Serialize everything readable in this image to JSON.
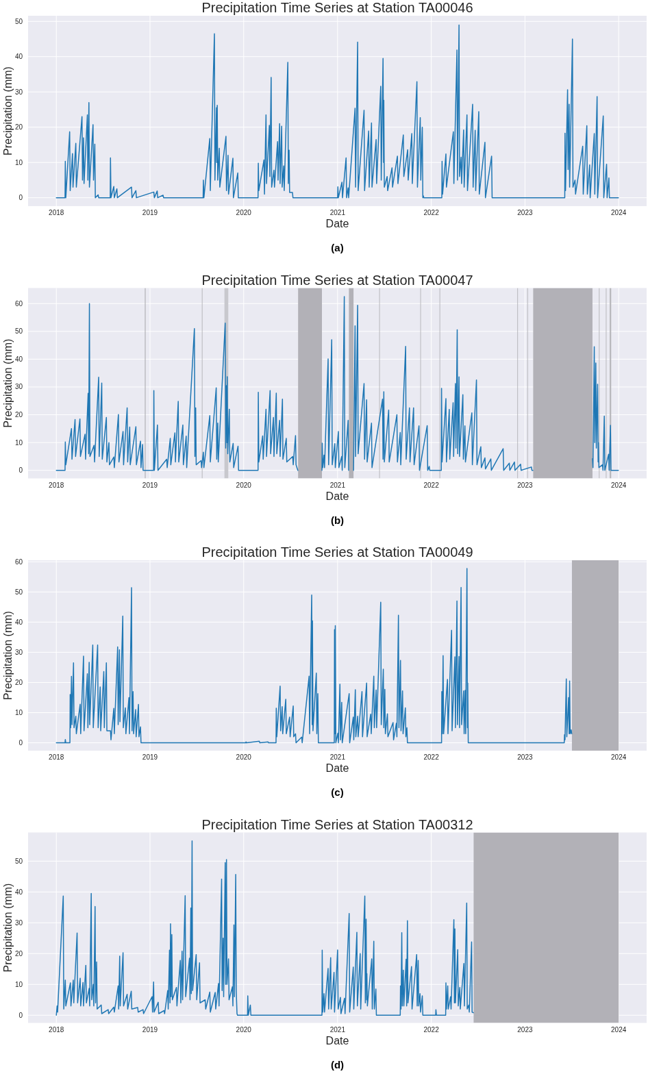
{
  "chart_data": [
    {
      "type": "line",
      "title": "Precipitation Time Series at Station TA00046",
      "xlabel": "Date",
      "ylabel": "Precipitation (mm)",
      "annotations": [
        "(a)"
      ],
      "grid": true,
      "xlim": [
        "2017-09-13",
        "2024-04-19"
      ],
      "xticks": [
        "2018",
        "2019",
        "2020",
        "2021",
        "2022",
        "2023",
        "2024"
      ],
      "ylim": [
        -2.4,
        51.6
      ],
      "yticks": [
        0,
        10,
        20,
        30,
        40,
        50
      ],
      "x": [
        "2018-01-01",
        "2018-02-04",
        "2018-02-05",
        "2018-02-07",
        "2018-02-22",
        "2018-02-24",
        "2018-03-05",
        "2018-03-07",
        "2018-03-18",
        "2018-03-20",
        "2018-04-11",
        "2018-04-13",
        "2018-04-17",
        "2018-04-19",
        "2018-05-02",
        "2018-05-04",
        "2018-05-08",
        "2018-05-10",
        "2018-05-24",
        "2018-05-26",
        "2018-05-31",
        "2018-06-02",
        "2018-06-13",
        "2018-06-15",
        "2018-07-30",
        "2018-07-31",
        "2018-08-02",
        "2018-08-13",
        "2018-08-15",
        "2018-08-25",
        "2018-08-27",
        "2018-10-21",
        "2018-10-23",
        "2018-11-07",
        "2018-11-09",
        "2019-01-16",
        "2019-01-18",
        "2019-01-29",
        "2019-01-31",
        "2019-02-21",
        "2019-02-23",
        "2019-07-27",
        "2019-07-28",
        "2019-07-30",
        "2019-08-22",
        "2019-08-24",
        "2019-09-09",
        "2019-09-11",
        "2019-09-17",
        "2019-09-18",
        "2019-09-20",
        "2019-09-22",
        "2019-09-28",
        "2019-09-30",
        "2019-10-24",
        "2019-10-26",
        "2019-11-01",
        "2019-11-03",
        "2019-11-20",
        "2019-11-22",
        "2019-12-09",
        "2019-12-11",
        "2020-02-26",
        "2020-02-27",
        "2020-02-29",
        "2020-03-20",
        "2020-03-22",
        "2020-03-28",
        "2020-03-30",
        "2020-04-10",
        "2020-04-12",
        "2020-04-17",
        "2020-04-19",
        "2020-04-28",
        "2020-04-30",
        "2020-05-12",
        "2020-05-14",
        "2020-05-20",
        "2020-05-22",
        "2020-05-28",
        "2020-05-30",
        "2020-06-05",
        "2020-06-07",
        "2020-06-21",
        "2020-06-23",
        "2020-06-26",
        "2020-06-28",
        "2020-07-09",
        "2020-07-11",
        "2021-01-01",
        "2021-01-02",
        "2021-01-04",
        "2021-01-18",
        "2021-01-20",
        "2021-02-03",
        "2021-02-05",
        "2021-02-11",
        "2021-02-13",
        "2021-03-10",
        "2021-03-12",
        "2021-03-20",
        "2021-03-22",
        "2021-04-14",
        "2021-04-16",
        "2021-05-02",
        "2021-05-04",
        "2021-05-13",
        "2021-05-15",
        "2021-05-31",
        "2021-06-02",
        "2021-06-18",
        "2021-06-20",
        "2021-06-27",
        "2021-06-29",
        "2021-06-30",
        "2021-07-02",
        "2021-07-13",
        "2021-07-15",
        "2021-08-01",
        "2021-08-03",
        "2021-08-22",
        "2021-08-24",
        "2021-09-14",
        "2021-09-16",
        "2021-10-01",
        "2021-10-03",
        "2021-10-17",
        "2021-10-19",
        "2021-11-06",
        "2021-11-08",
        "2021-11-19",
        "2021-11-21",
        "2021-11-27",
        "2021-11-29",
        "2021-12-01",
        "2021-12-03",
        "2022-02-11",
        "2022-02-12",
        "2022-02-14",
        "2022-02-27",
        "2022-03-01",
        "2022-03-28",
        "2022-03-30",
        "2022-04-11",
        "2022-04-13",
        "2022-04-19",
        "2022-04-21",
        "2022-04-27",
        "2022-04-29",
        "2022-05-07",
        "2022-05-09",
        "2022-05-20",
        "2022-05-22",
        "2022-06-11",
        "2022-06-13",
        "2022-06-21",
        "2022-06-23",
        "2022-07-05",
        "2022-07-07",
        "2022-07-29",
        "2022-07-31",
        "2022-08-24",
        "2022-08-26",
        "2023-06-05",
        "2023-06-06",
        "2023-06-08",
        "2023-06-16",
        "2023-06-18",
        "2023-06-22",
        "2023-06-24",
        "2023-07-05",
        "2023-07-07",
        "2023-07-15",
        "2023-07-17",
        "2023-08-14",
        "2023-08-16",
        "2023-08-30",
        "2023-09-01",
        "2023-09-10",
        "2023-09-12",
        "2023-09-28",
        "2023-09-30",
        "2023-10-09",
        "2023-10-11",
        "2023-11-02",
        "2023-11-04",
        "2023-11-15",
        "2023-11-17",
        "2023-11-24",
        "2023-11-26",
        "2023-12-31"
      ],
      "series": [
        {
          "color": "#1f77b4",
          "values": [
            0,
            0,
            10.3,
            0,
            18.7,
            2,
            12.5,
            3,
            15.4,
            3,
            23,
            5,
            17,
            4,
            23.5,
            5,
            27,
            3,
            20.7,
            5,
            15.2,
            0,
            0.8,
            0,
            0,
            11.3,
            0,
            3.2,
            0,
            2.5,
            0,
            3,
            0,
            2,
            0,
            1.6,
            0,
            1.9,
            0,
            0.7,
            0,
            0,
            5,
            0,
            16.8,
            2,
            46.5,
            5,
            25.5,
            10,
            26.2,
            5,
            14,
            3,
            17.4,
            2,
            12,
            1,
            11.2,
            0,
            7,
            0,
            0,
            9.8,
            2,
            10.7,
            1,
            23.5,
            4,
            20.5,
            6,
            34.1,
            3,
            7.8,
            3,
            15.9,
            5,
            21,
            4,
            20.3,
            3,
            9,
            2,
            38.4,
            4,
            13.5,
            1.5,
            1.5,
            0,
            0,
            3.1,
            0,
            4.4,
            0,
            11.3,
            0,
            2.8,
            0,
            25.4,
            3,
            44.1,
            2,
            24.8,
            2,
            18.9,
            3,
            21.2,
            3,
            16.5,
            4,
            31.6,
            5,
            39.5,
            10,
            27.6,
            3,
            6,
            2,
            8.5,
            3,
            11.8,
            4,
            17.8,
            6,
            13.6,
            5,
            18.2,
            4,
            32.9,
            3,
            22.7,
            5,
            20,
            0,
            0.5,
            0,
            0,
            10.3,
            1,
            12.4,
            3,
            18.7,
            4,
            41.9,
            5,
            49,
            6,
            11.5,
            4,
            19.2,
            3,
            23.5,
            2,
            26.5,
            3,
            19.1,
            2,
            24.4,
            1,
            15.7,
            0,
            11.8,
            0,
            0,
            18.3,
            2,
            30.6,
            8,
            26.5,
            3,
            45,
            3,
            5,
            1,
            14.6,
            1,
            20.4,
            1,
            9.3,
            0,
            18.2,
            1,
            28.7,
            0,
            23.2,
            0,
            9.5,
            0,
            5.6,
            0,
            0
          ]
        }
      ]
    },
    {
      "type": "line",
      "title": "Precipitation Time Series at Station TA00047",
      "xlabel": "Date",
      "ylabel": "Precipitation (mm)",
      "annotations": [
        "(b)"
      ],
      "grid": true,
      "xlim": [
        "2017-09-13",
        "2024-04-19"
      ],
      "xticks": [
        "2018",
        "2019",
        "2020",
        "2021",
        "2022",
        "2023",
        "2024"
      ],
      "ylim": [
        -2.9,
        65.6
      ],
      "yticks": [
        0,
        10,
        20,
        30,
        40,
        50,
        60
      ],
      "bands": [
        {
          "axis": "x",
          "from": "2020-07-31",
          "to": "2020-11-01",
          "color": "#b2b1b7"
        },
        {
          "axis": "x",
          "from": "2021-02-14",
          "to": "2021-03-04",
          "color": "#b2b1b7"
        },
        {
          "axis": "x",
          "from": "2023-02-02",
          "to": "2023-09-21",
          "color": "#b2b1b7"
        },
        {
          "axis": "x",
          "from": "2018-12-12",
          "to": "2018-12-14",
          "color": "#a4a4a8"
        },
        {
          "axis": "x",
          "from": "2019-07-22",
          "to": "2019-07-23",
          "color": "#b8b8bc"
        },
        {
          "axis": "x",
          "from": "2019-10-18",
          "to": "2019-11-02",
          "color": "#c8c8cd"
        },
        {
          "axis": "x",
          "from": "2021-06-12",
          "to": "2021-06-13",
          "color": "#b8b8bc"
        },
        {
          "axis": "x",
          "from": "2021-11-19",
          "to": "2021-11-20",
          "color": "#b8b8bc"
        },
        {
          "axis": "x",
          "from": "2022-02-02",
          "to": "2022-02-03",
          "color": "#b8b8bc"
        },
        {
          "axis": "x",
          "from": "2022-12-02",
          "to": "2022-12-03",
          "color": "#b8b8bc"
        },
        {
          "axis": "x",
          "from": "2023-01-10",
          "to": "2023-01-11",
          "color": "#b8b8bc"
        },
        {
          "axis": "x",
          "from": "2023-10-16",
          "to": "2023-10-18",
          "color": "#b8b8bc"
        },
        {
          "axis": "x",
          "from": "2023-11-12",
          "to": "2023-11-13",
          "color": "#b8b8bc"
        },
        {
          "axis": "x",
          "from": "2023-11-27",
          "to": "2023-12-03",
          "color": "#b8b8bc"
        }
      ],
      "x": [
        "2018-01-01",
        "2018-02-04",
        "2018-02-05",
        "2018-02-07",
        "2018-03-01",
        "2018-03-03",
        "2018-03-15",
        "2018-03-17",
        "2018-04-03",
        "2018-04-05",
        "2018-04-23",
        "2018-04-25",
        "2018-05-05",
        "2018-05-07",
        "2018-05-10",
        "2018-05-12",
        "2018-05-28",
        "2018-05-30",
        "2018-06-15",
        "2018-06-17",
        "2018-06-27",
        "2018-06-29",
        "2018-07-15",
        "2018-07-17",
        "2018-07-25",
        "2018-07-27",
        "2018-08-13",
        "2018-08-15",
        "2018-08-31",
        "2018-09-02",
        "2018-09-18",
        "2018-09-20",
        "2018-10-04",
        "2018-10-06",
        "2018-10-14",
        "2018-10-16",
        "2018-11-07",
        "2018-11-09",
        "2018-11-25",
        "2018-11-27",
        "2018-12-03",
        "2018-12-05",
        "2019-01-15",
        "2019-01-16",
        "2019-01-18",
        "2019-01-30",
        "2019-02-01",
        "2019-03-07",
        "2019-03-09",
        "2019-03-21",
        "2019-03-23",
        "2019-04-08",
        "2019-04-10",
        "2019-04-21",
        "2019-04-23",
        "2019-05-09",
        "2019-05-11",
        "2019-05-22",
        "2019-05-24",
        "2019-06-23",
        "2019-06-25",
        "2019-06-28",
        "2019-06-30",
        "2019-07-19",
        "2019-07-21",
        "2019-07-28",
        "2019-07-30",
        "2019-08-22",
        "2019-08-24",
        "2019-09-16",
        "2019-09-18",
        "2019-09-22",
        "2019-09-24",
        "2019-10-21",
        "2019-10-23",
        "2019-10-26",
        "2019-10-28",
        "2019-10-29",
        "2019-10-31",
        "2019-11-06",
        "2019-11-08",
        "2019-11-21",
        "2019-11-23",
        "2019-12-10",
        "2019-12-12",
        "2020-02-26",
        "2020-02-27",
        "2020-02-29",
        "2020-03-15",
        "2020-03-17",
        "2020-03-28",
        "2020-03-30",
        "2020-04-13",
        "2020-04-15",
        "2020-04-26",
        "2020-04-28",
        "2020-05-07",
        "2020-05-09",
        "2020-05-20",
        "2020-05-22",
        "2020-05-31",
        "2020-06-02",
        "2020-06-15",
        "2020-06-17",
        "2020-07-10",
        "2020-07-12",
        "2020-07-21",
        "2020-07-23",
        "2020-07-30",
        "2020-09-15",
        "2020-11-01",
        "2020-11-02",
        "2020-11-04",
        "2020-11-09",
        "2020-11-11",
        "2020-11-25",
        "2020-11-27",
        "2020-12-09",
        "2020-12-11",
        "2020-12-21",
        "2020-12-23",
        "2021-01-04",
        "2021-01-06",
        "2021-01-17",
        "2021-01-19",
        "2021-01-27",
        "2021-01-29",
        "2021-02-11",
        "2021-02-13",
        "2021-02-24",
        "2021-03-04",
        "2021-03-10",
        "2021-03-12",
        "2021-03-20",
        "2021-03-22",
        "2021-04-14",
        "2021-04-16",
        "2021-04-24",
        "2021-04-26",
        "2021-05-13",
        "2021-05-15",
        "2021-06-25",
        "2021-06-27",
        "2021-06-30",
        "2021-07-02",
        "2021-07-19",
        "2021-07-21",
        "2021-08-20",
        "2021-08-22",
        "2021-09-02",
        "2021-09-04",
        "2021-09-23",
        "2021-09-25",
        "2021-10-08",
        "2021-10-10",
        "2021-10-24",
        "2021-10-26",
        "2021-11-14",
        "2021-11-16",
        "2021-12-16",
        "2021-12-18",
        "2021-12-24",
        "2021-12-26",
        "2022-02-09",
        "2022-02-10",
        "2022-02-12",
        "2022-02-27",
        "2022-03-01",
        "2022-03-12",
        "2022-03-14",
        "2022-03-27",
        "2022-03-29",
        "2022-04-05",
        "2022-04-07",
        "2022-04-12",
        "2022-04-14",
        "2022-04-19",
        "2022-04-21",
        "2022-05-04",
        "2022-05-06",
        "2022-05-12",
        "2022-05-14",
        "2022-06-08",
        "2022-06-10",
        "2022-06-26",
        "2022-06-28",
        "2022-07-13",
        "2022-07-15",
        "2022-07-29",
        "2022-07-31",
        "2022-08-21",
        "2022-08-23",
        "2022-10-08",
        "2022-10-10",
        "2022-11-01",
        "2022-11-03",
        "2022-11-21",
        "2022-11-23",
        "2022-12-15",
        "2022-12-17",
        "2023-01-26",
        "2023-01-28",
        "2023-02-01",
        "2023-06-01",
        "2023-09-21",
        "2023-09-23",
        "2023-09-28",
        "2023-09-30",
        "2023-10-04",
        "2023-10-06",
        "2023-10-11",
        "2023-10-13",
        "2023-10-14",
        "2023-10-16",
        "2023-10-30",
        "2023-11-01",
        "2023-11-06",
        "2023-11-08",
        "2023-11-23",
        "2023-11-25",
        "2023-11-30",
        "2023-12-02",
        "2023-12-31"
      ],
      "series": [
        {
          "color": "#1f77b4",
          "values": [
            0,
            0,
            10.2,
            2,
            15,
            4,
            18.3,
            5,
            18.5,
            5,
            13,
            4,
            27.7,
            6,
            60,
            5,
            9,
            3,
            33.5,
            5,
            31.4,
            4,
            19,
            3,
            10,
            2,
            4.8,
            1,
            20.1,
            3,
            14,
            2,
            22.5,
            3,
            15.6,
            2,
            15.7,
            2,
            10.5,
            1,
            9.3,
            0,
            0,
            28.7,
            0,
            16.3,
            0,
            4,
            1,
            11.5,
            2,
            13.5,
            3,
            24.8,
            3,
            16.3,
            2,
            12.3,
            1,
            51,
            5,
            22.5,
            2,
            3.5,
            1,
            6.5,
            1,
            19.7,
            3,
            29.7,
            4,
            17,
            3,
            53,
            8,
            30.5,
            10,
            33.7,
            6,
            22,
            3,
            9.7,
            1,
            8.7,
            0,
            0,
            28.1,
            3,
            12.4,
            4,
            22,
            5,
            28.7,
            6,
            19,
            5,
            27.8,
            6,
            18,
            5,
            25.6,
            4,
            11.5,
            3,
            5,
            2,
            12.5,
            2,
            0,
            null,
            0,
            9.8,
            1,
            5.5,
            1,
            40.1,
            2,
            47,
            2,
            9.6,
            1,
            14,
            1,
            5,
            0,
            62.5,
            1,
            18,
            0,
            null,
            0,
            52,
            5,
            59.4,
            6,
            31.2,
            4,
            25.4,
            3,
            17,
            1,
            25.6,
            4,
            28.3,
            3,
            21.7,
            3,
            20,
            3,
            13.6,
            2,
            44.6,
            4,
            22.5,
            3,
            22.5,
            2,
            16,
            0,
            16.1,
            0,
            1.4,
            0,
            0,
            29.5,
            3,
            25.8,
            3,
            21.9,
            4,
            24.3,
            5,
            31.2,
            8,
            50.6,
            6,
            33.6,
            5,
            27.2,
            4,
            16,
            3,
            20.7,
            2,
            32.5,
            2,
            8.5,
            1,
            4.5,
            0.5,
            4.1,
            0,
            7.8,
            0,
            2.6,
            0,
            3,
            0,
            2.2,
            0,
            1.2,
            0,
            0,
            null,
            4.2,
            1,
            44.5,
            10,
            38.6,
            8,
            31,
            3,
            10,
            1,
            2,
            0,
            19.5,
            0,
            5.8,
            0,
            16.2,
            0,
            0
          ]
        }
      ]
    },
    {
      "type": "line",
      "title": "Precipitation Time Series at Station TA00049",
      "xlabel": "Date",
      "ylabel": "Precipitation (mm)",
      "annotations": [
        "(c)"
      ],
      "grid": true,
      "xlim": [
        "2017-09-13",
        "2024-04-19"
      ],
      "xticks": [
        "2018",
        "2019",
        "2020",
        "2021",
        "2022",
        "2023",
        "2024"
      ],
      "ylim": [
        -2.6,
        60.5
      ],
      "yticks": [
        0,
        10,
        20,
        30,
        40,
        50,
        60
      ],
      "bands": [
        {
          "axis": "x",
          "from": "2023-07-03",
          "to": "2024-01-01",
          "color": "#b2b1b7"
        }
      ],
      "x": [
        "2018-01-01",
        "2018-02-04",
        "2018-02-05",
        "2018-02-07",
        "2018-02-23",
        "2018-02-24",
        "2018-02-26",
        "2018-03-01",
        "2018-03-03",
        "2018-03-09",
        "2018-03-11",
        "2018-03-18",
        "2018-03-20",
        "2018-04-04",
        "2018-04-06",
        "2018-04-17",
        "2018-04-19",
        "2018-05-02",
        "2018-05-04",
        "2018-05-09",
        "2018-05-11",
        "2018-05-23",
        "2018-05-25",
        "2018-06-11",
        "2018-06-13",
        "2018-06-21",
        "2018-06-23",
        "2018-07-05",
        "2018-07-07",
        "2018-07-15",
        "2018-07-17",
        "2018-07-31",
        "2018-08-02",
        "2018-08-13",
        "2018-08-15",
        "2018-08-28",
        "2018-08-30",
        "2018-09-04",
        "2018-09-06",
        "2018-09-17",
        "2018-09-19",
        "2018-09-27",
        "2018-09-29",
        "2018-10-11",
        "2018-10-13",
        "2018-10-21",
        "2018-10-23",
        "2018-10-27",
        "2018-10-29",
        "2018-11-06",
        "2018-11-08",
        "2018-11-17",
        "2018-11-19",
        "2018-11-25",
        "2018-11-27",
        "2020-01-09",
        "2020-01-10",
        "2020-01-12",
        "2020-03-02",
        "2020-03-04",
        "2020-04-05",
        "2020-04-07",
        "2020-05-06",
        "2020-05-07",
        "2020-05-09",
        "2020-05-22",
        "2020-05-24",
        "2020-05-30",
        "2020-06-01",
        "2020-06-13",
        "2020-06-15",
        "2020-06-28",
        "2020-06-30",
        "2020-07-12",
        "2020-07-14",
        "2020-07-21",
        "2020-07-23",
        "2020-08-14",
        "2020-08-16",
        "2020-09-12",
        "2020-09-14",
        "2020-09-22",
        "2020-09-24",
        "2020-09-25",
        "2020-09-27",
        "2020-10-10",
        "2020-10-12",
        "2020-10-16",
        "2020-10-18",
        "2020-12-19",
        "2020-12-20",
        "2020-12-22",
        "2020-12-23",
        "2020-12-25",
        "2021-01-02",
        "2021-01-04",
        "2021-01-10",
        "2021-01-12",
        "2021-01-17",
        "2021-01-19",
        "2021-02-15",
        "2021-02-17",
        "2021-03-03",
        "2021-03-05",
        "2021-03-11",
        "2021-03-13",
        "2021-03-20",
        "2021-03-22",
        "2021-04-06",
        "2021-04-08",
        "2021-04-24",
        "2021-04-26",
        "2021-05-10",
        "2021-05-12",
        "2021-05-22",
        "2021-05-24",
        "2021-05-31",
        "2021-06-02",
        "2021-06-18",
        "2021-06-20",
        "2021-06-28",
        "2021-06-30",
        "2021-07-04",
        "2021-07-06",
        "2021-07-14",
        "2021-07-16",
        "2021-08-05",
        "2021-08-07",
        "2021-08-18",
        "2021-08-20",
        "2021-08-26",
        "2021-08-28",
        "2021-09-03",
        "2021-09-05",
        "2021-09-11",
        "2021-09-13",
        "2021-09-22",
        "2021-09-24",
        "2021-09-28",
        "2021-09-30",
        "2022-02-10",
        "2022-02-11",
        "2022-02-13",
        "2022-02-16",
        "2022-02-18",
        "2022-03-05",
        "2022-03-07",
        "2022-03-21",
        "2022-03-23",
        "2022-04-03",
        "2022-04-05",
        "2022-04-11",
        "2022-04-13",
        "2022-04-19",
        "2022-04-21",
        "2022-04-27",
        "2022-04-29",
        "2022-05-07",
        "2022-05-09",
        "2022-05-13",
        "2022-05-15",
        "2022-05-20",
        "2022-05-22",
        "2022-05-23",
        "2022-05-25",
        "2023-06-03",
        "2023-06-04",
        "2023-06-06",
        "2023-06-11",
        "2023-06-13",
        "2023-06-20",
        "2023-06-22",
        "2023-06-24",
        "2023-06-26",
        "2023-06-30",
        "2023-07-02"
      ],
      "series": [
        {
          "color": "#1f77b4",
          "values": [
            0,
            0,
            1.1,
            0,
            0,
            16,
            5,
            22,
            6,
            26.5,
            5,
            8.8,
            3,
            12.8,
            3,
            28.7,
            4,
            22.9,
            5,
            26.7,
            6,
            32.4,
            5,
            32.4,
            5,
            18.5,
            4,
            23.6,
            5,
            26.5,
            4,
            4,
            1,
            11.4,
            3,
            31.8,
            6,
            30.8,
            7,
            42,
            5,
            11.6,
            3,
            15,
            3,
            51.4,
            4,
            17,
            3,
            11,
            2,
            12.7,
            2,
            5.3,
            0,
            0,
            0.3,
            0,
            0.5,
            0,
            0.3,
            0,
            0,
            11.5,
            2,
            18.8,
            4,
            12,
            3,
            14.4,
            3,
            8.5,
            2,
            12.2,
            2,
            3,
            0,
            1.9,
            0,
            22.1,
            3,
            49,
            6,
            40.4,
            4,
            23.1,
            3,
            16.3,
            0,
            0,
            37.5,
            3,
            38.8,
            0,
            3.2,
            0,
            19.4,
            1,
            13.4,
            0,
            16.3,
            0,
            8.5,
            1,
            17.6,
            2,
            8.8,
            2,
            17,
            2,
            19.8,
            2,
            9.5,
            3,
            22.1,
            5,
            17.5,
            5,
            46.6,
            6,
            24.4,
            5,
            17.7,
            3,
            9.6,
            2,
            6.7,
            1,
            6.5,
            2,
            42.3,
            5,
            27.3,
            4,
            17.2,
            3,
            11.6,
            2,
            5,
            0,
            0,
            17,
            3,
            28.9,
            3,
            21,
            3,
            37.3,
            4,
            28.5,
            5,
            47,
            6,
            28.6,
            5,
            51.5,
            6,
            17.2,
            3,
            17.4,
            3,
            57.8,
            5,
            19.8,
            0,
            0,
            2.7,
            1,
            21.2,
            2,
            15,
            3,
            20.5,
            3,
            4.3,
            3
          ]
        }
      ]
    },
    {
      "type": "line",
      "title": "Precipitation Time Series at Station TA00312",
      "xlabel": "Date",
      "ylabel": "Precipitation (mm)",
      "annotations": [
        "(d)"
      ],
      "grid": true,
      "xlim": [
        "2017-09-13",
        "2024-04-19"
      ],
      "xticks": [
        "2018",
        "2019",
        "2020",
        "2021",
        "2022",
        "2023",
        "2024"
      ],
      "ylim": [
        -2.5,
        59.3
      ],
      "yticks": [
        0,
        10,
        20,
        30,
        40,
        50
      ],
      "bands": [
        {
          "axis": "x",
          "from": "2022-06-15",
          "to": "2024-01-01",
          "color": "#b2b1b7"
        }
      ],
      "x": [
        "2018-01-01",
        "2018-01-04",
        "2018-01-06",
        "2018-01-28",
        "2018-01-30",
        "2018-02-05",
        "2018-02-07",
        "2018-02-25",
        "2018-02-27",
        "2018-03-08",
        "2018-03-10",
        "2018-03-23",
        "2018-03-25",
        "2018-04-04",
        "2018-04-06",
        "2018-04-15",
        "2018-04-17",
        "2018-04-26",
        "2018-04-28",
        "2018-05-09",
        "2018-05-11",
        "2018-05-17",
        "2018-05-19",
        "2018-05-25",
        "2018-05-27",
        "2018-06-01",
        "2018-06-03",
        "2018-06-07",
        "2018-06-09",
        "2018-06-25",
        "2018-06-27",
        "2018-07-22",
        "2018-07-24",
        "2018-08-13",
        "2018-08-15",
        "2018-08-30",
        "2018-09-01",
        "2018-09-05",
        "2018-09-07",
        "2018-09-18",
        "2018-09-20",
        "2018-10-04",
        "2018-10-06",
        "2018-10-20",
        "2018-10-22",
        "2018-11-14",
        "2018-11-16",
        "2018-12-05",
        "2018-12-07",
        "2019-01-09",
        "2019-01-11",
        "2019-01-15",
        "2019-01-17",
        "2019-02-02",
        "2019-02-04",
        "2019-02-25",
        "2019-02-27",
        "2019-03-11",
        "2019-03-13",
        "2019-03-18",
        "2019-03-20",
        "2019-03-22",
        "2019-03-24",
        "2019-03-27",
        "2019-03-29",
        "2019-04-14",
        "2019-04-16",
        "2019-04-29",
        "2019-05-01",
        "2019-05-06",
        "2019-05-08",
        "2019-05-18",
        "2019-05-20",
        "2019-06-04",
        "2019-06-06",
        "2019-06-09",
        "2019-06-11",
        "2019-06-14",
        "2019-06-16",
        "2019-06-30",
        "2019-07-02",
        "2019-07-13",
        "2019-07-15",
        "2019-08-04",
        "2019-08-06",
        "2019-08-22",
        "2019-08-24",
        "2019-09-12",
        "2019-09-14",
        "2019-09-25",
        "2019-09-27",
        "2019-10-07",
        "2019-10-09",
        "2019-10-13",
        "2019-10-15",
        "2019-10-21",
        "2019-10-23",
        "2019-10-26",
        "2019-10-28",
        "2019-11-03",
        "2019-11-05",
        "2019-11-18",
        "2019-11-20",
        "2019-11-24",
        "2019-11-26",
        "2019-12-01",
        "2019-12-03",
        "2019-12-06",
        "2019-12-08",
        "2020-01-16",
        "2020-01-17",
        "2020-01-19",
        "2020-01-27",
        "2020-01-29",
        "2020-11-01",
        "2020-11-02",
        "2020-11-04",
        "2020-11-09",
        "2020-11-11",
        "2020-11-25",
        "2020-11-27",
        "2020-12-05",
        "2020-12-07",
        "2020-12-18",
        "2020-12-20",
        "2021-01-01",
        "2021-01-03",
        "2021-01-12",
        "2021-01-14",
        "2021-01-28",
        "2021-01-30",
        "2021-02-15",
        "2021-02-17",
        "2021-03-03",
        "2021-03-05",
        "2021-03-17",
        "2021-03-19",
        "2021-03-30",
        "2021-04-01",
        "2021-04-17",
        "2021-04-19",
        "2021-04-22",
        "2021-04-24",
        "2021-04-25",
        "2021-04-27",
        "2021-05-14",
        "2021-05-16",
        "2021-05-22",
        "2021-05-24",
        "2021-05-30",
        "2021-06-01",
        "2021-09-02",
        "2021-09-03",
        "2021-09-05",
        "2021-09-08",
        "2021-09-10",
        "2021-09-14",
        "2021-09-16",
        "2021-09-25",
        "2021-09-27",
        "2021-09-30",
        "2021-10-02",
        "2021-10-16",
        "2021-10-18",
        "2021-11-05",
        "2021-11-07",
        "2021-11-11",
        "2021-11-13",
        "2021-11-18",
        "2021-11-20",
        "2021-11-27",
        "2021-11-29",
        "2022-01-18",
        "2022-01-19",
        "2022-01-21",
        "2022-02-26",
        "2022-02-27",
        "2022-03-01",
        "2022-03-06",
        "2022-03-08",
        "2022-03-17",
        "2022-03-19",
        "2022-03-30",
        "2022-04-01",
        "2022-04-03",
        "2022-04-05",
        "2022-04-14",
        "2022-04-16",
        "2022-04-22",
        "2022-04-24",
        "2022-05-08",
        "2022-05-10",
        "2022-05-19",
        "2022-05-21",
        "2022-05-27",
        "2022-05-29",
        "2022-06-07",
        "2022-06-09",
        "2022-06-14"
      ],
      "series": [
        {
          "color": "#1f77b4",
          "values": [
            0,
            3,
            1,
            38.7,
            2,
            11.4,
            3,
            10.5,
            3,
            11.4,
            4,
            26.7,
            4,
            12,
            3,
            10.6,
            3,
            16.2,
            4,
            8.7,
            3,
            39.5,
            5,
            10,
            3,
            35.3,
            4,
            17.3,
            2,
            3.3,
            0.5,
            1.8,
            0.5,
            2.6,
            1,
            9.5,
            2,
            19.2,
            3,
            20.3,
            3,
            6.8,
            2,
            7.8,
            2,
            2.5,
            1,
            1.8,
            0.5,
            6,
            1,
            10.8,
            1,
            4.2,
            0.5,
            1.5,
            0.5,
            8,
            2,
            21.1,
            4,
            29.7,
            6,
            26.2,
            5,
            9,
            3,
            17.8,
            4,
            20.8,
            5,
            38.8,
            6,
            18.5,
            5,
            34.8,
            7,
            56.6,
            8,
            19.7,
            5,
            17,
            4,
            5,
            2,
            7.5,
            1,
            7.4,
            2,
            10.3,
            3,
            44.2,
            8,
            25,
            6,
            49.5,
            10,
            50.5,
            10,
            18.3,
            5,
            9.2,
            3,
            29.3,
            6,
            45.7,
            8,
            0.5,
            0,
            0,
            6.3,
            0,
            3.3,
            0,
            0,
            21.1,
            1,
            7,
            1,
            15.2,
            2,
            18.7,
            2,
            13.9,
            1,
            21.2,
            2,
            5.8,
            0.5,
            5.5,
            0.5,
            33,
            1,
            15.6,
            2,
            26.9,
            3,
            20,
            2,
            38.7,
            4,
            31.2,
            5,
            13.5,
            3,
            18.3,
            2,
            24,
            2,
            8.5,
            0,
            0,
            9.5,
            2,
            26.8,
            3,
            14.6,
            3,
            18.2,
            3,
            30.7,
            4,
            15.8,
            2,
            19.7,
            3,
            17.8,
            3,
            7,
            1,
            6.3,
            0,
            0,
            1.8,
            0,
            0,
            10.5,
            2,
            9.5,
            2,
            6,
            2,
            31,
            4,
            28,
            4,
            21.3,
            3,
            9,
            2,
            16.8,
            3,
            36.4,
            2,
            3.3,
            1,
            23.8,
            1,
            0.8
          ]
        }
      ]
    }
  ]
}
